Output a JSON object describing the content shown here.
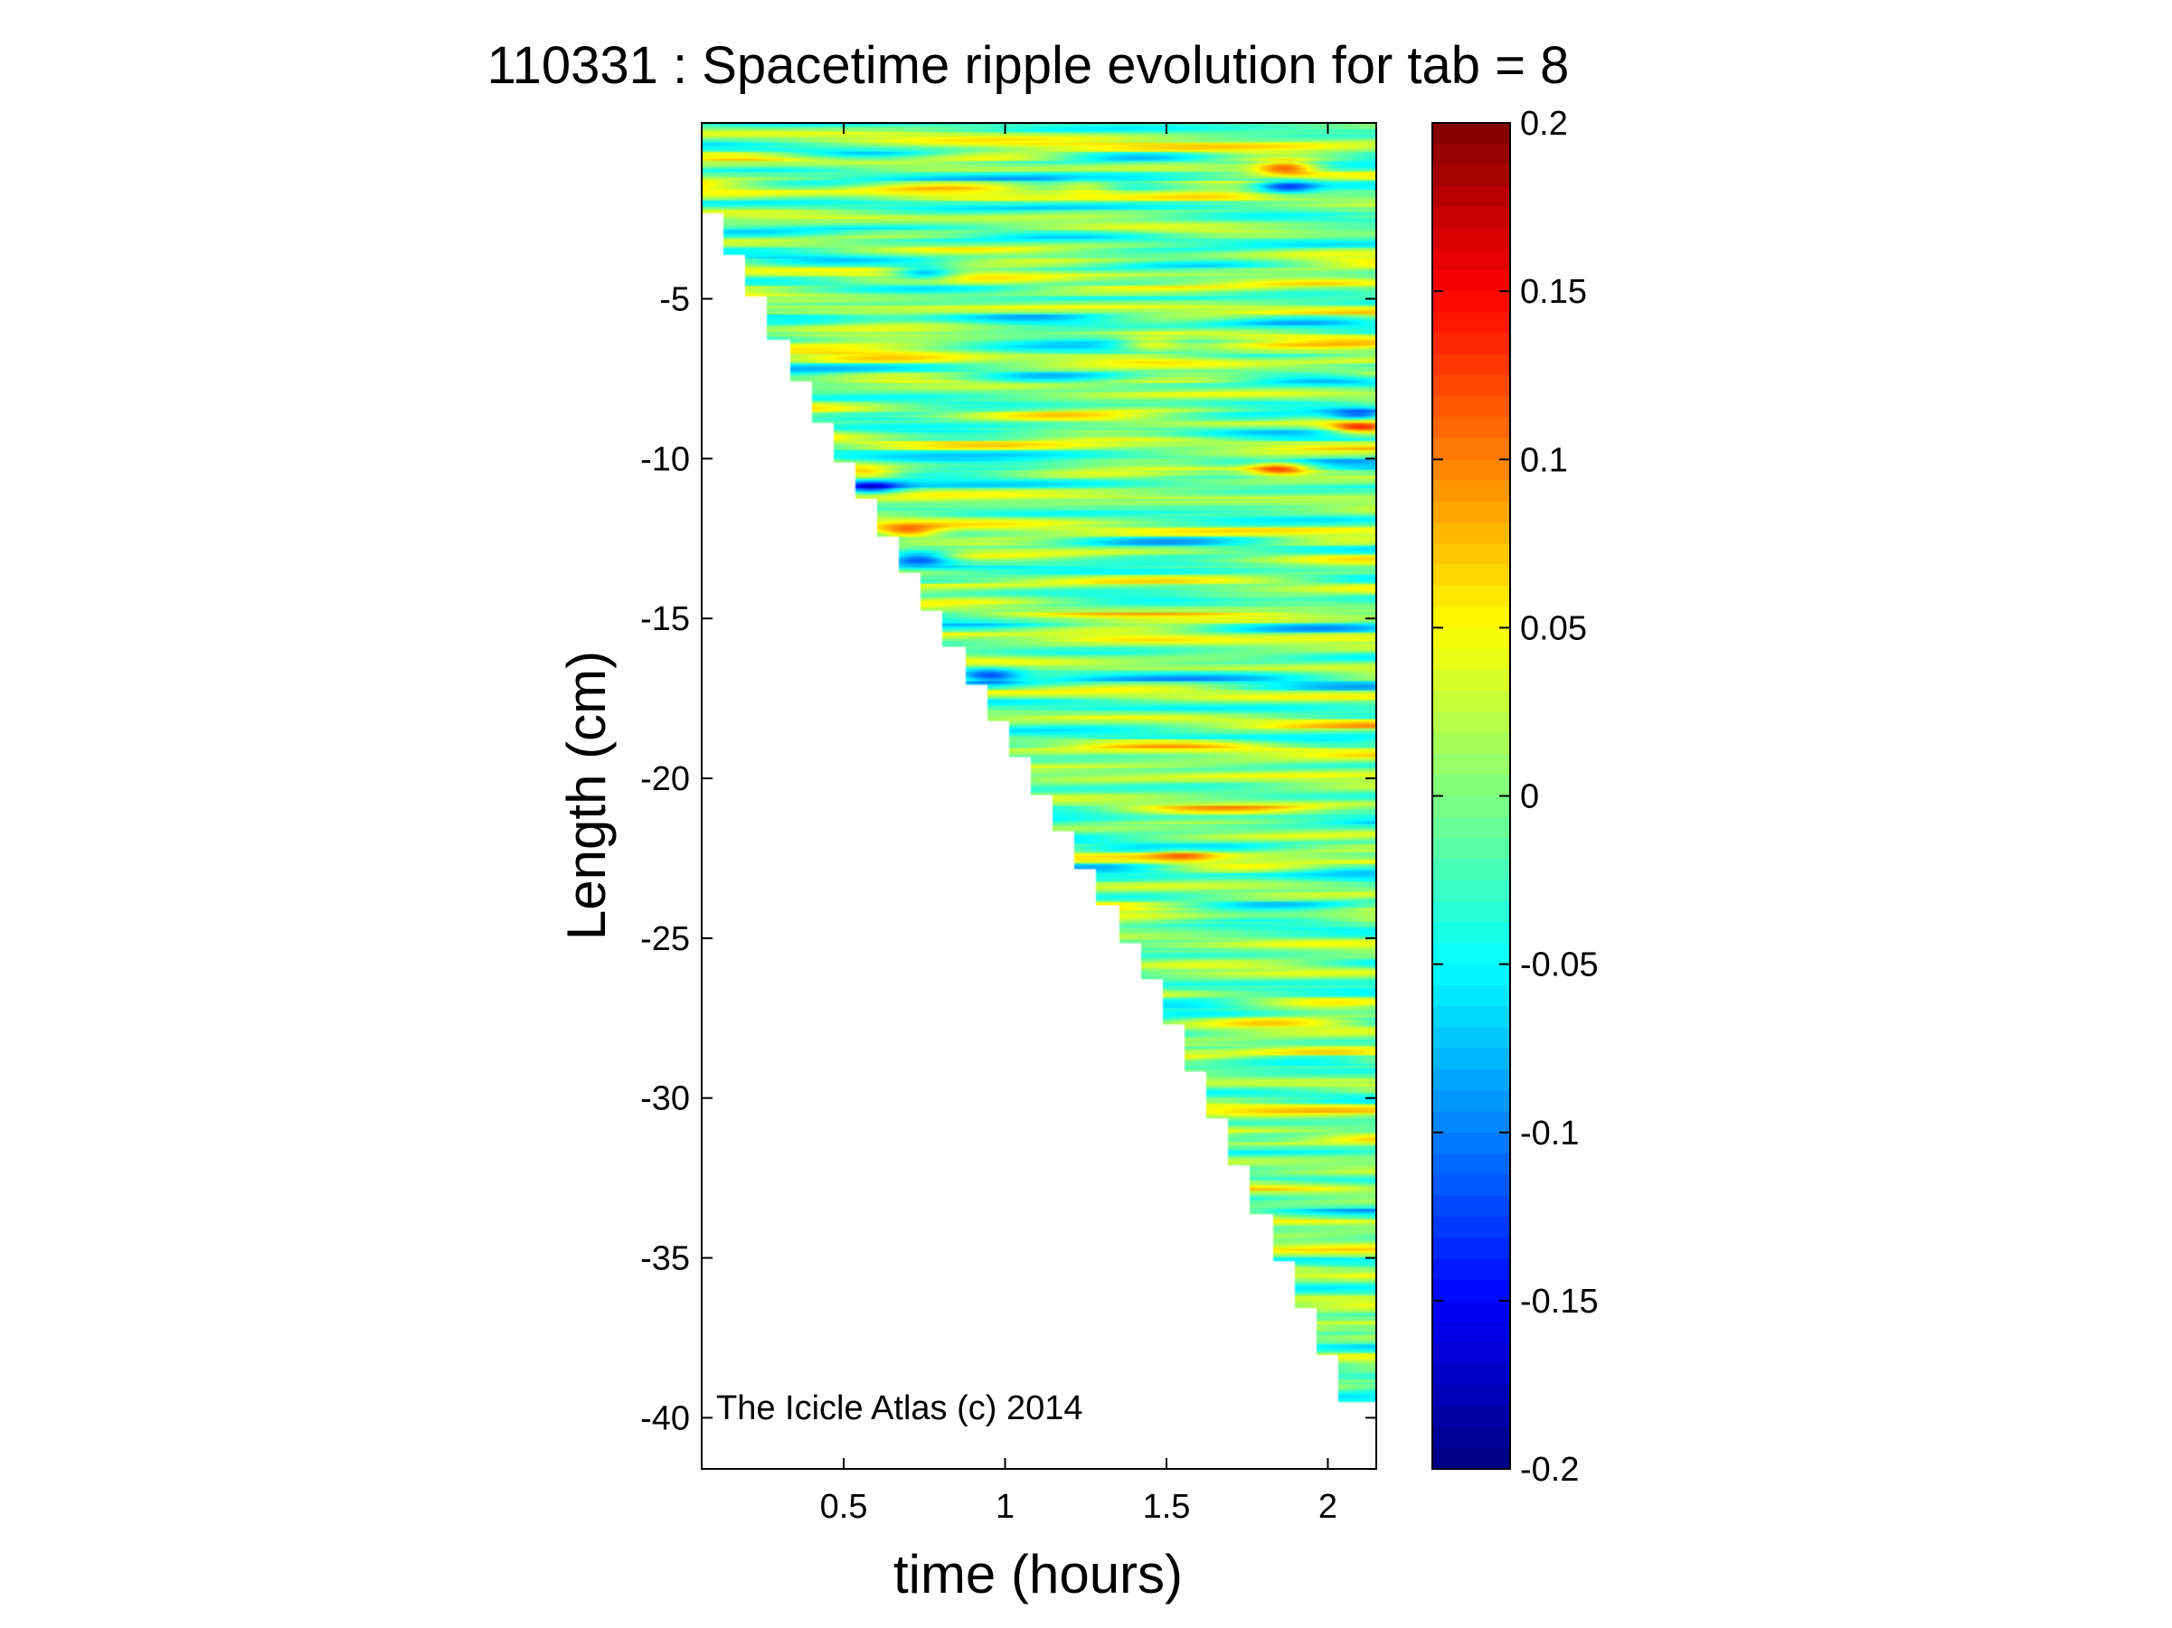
{
  "chart_data": {
    "type": "heatmap",
    "title": "110331 : Spacetime ripple evolution for tab = 8",
    "xlabel": "time (hours)",
    "ylabel": "Length (cm)",
    "xlim": [
      0.06,
      2.15
    ],
    "ylim": [
      -41.6,
      0.5
    ],
    "xticks": [
      0.5,
      1,
      1.5,
      2
    ],
    "xtick_labels": [
      "0.5",
      "1",
      "1.5",
      "2"
    ],
    "yticks": [
      -5,
      -10,
      -15,
      -20,
      -25,
      -30,
      -35,
      -40
    ],
    "ytick_labels": [
      "-5",
      "-10",
      "-15",
      "-20",
      "-25",
      "-30",
      "-35",
      "-40"
    ],
    "colorbar": {
      "colormap": "jet",
      "range": [
        -0.2,
        0.2
      ],
      "ticks": [
        0.2,
        0.15,
        0.1,
        0.05,
        0,
        -0.05,
        -0.1,
        -0.15,
        -0.2
      ],
      "tick_labels": [
        "0.2",
        "0.15",
        "0.1",
        "0.05",
        "0",
        "-0.05",
        "-0.1",
        "-0.15",
        "-0.2"
      ]
    },
    "grid": false,
    "annotation": "The Icicle Atlas (c) 2014",
    "data_boundary": {
      "description": "length grows with time; no data below the icicle tip",
      "tip_length_vs_time": [
        [
          0.06,
          -1.0
        ],
        [
          0.5,
          -9.5
        ],
        [
          1.0,
          -18.0
        ],
        [
          1.5,
          -26.5
        ],
        [
          2.1,
          -39.5
        ]
      ]
    },
    "features": [
      {
        "time": 0.7,
        "length": -12.3,
        "value": 0.12
      },
      {
        "time": 0.57,
        "length": -10.5,
        "value": 0.1
      },
      {
        "time": 0.58,
        "length": -10.9,
        "value": -0.12
      },
      {
        "time": 0.74,
        "length": -13.1,
        "value": -0.1
      },
      {
        "time": 1.25,
        "length": -1.5,
        "value": 0.09
      },
      {
        "time": 1.45,
        "length": -6.4,
        "value": 0.1
      },
      {
        "time": 1.87,
        "length": -0.9,
        "value": 0.15
      },
      {
        "time": 1.87,
        "length": -1.5,
        "value": -0.1
      },
      {
        "time": 1.85,
        "length": -10.3,
        "value": 0.15
      },
      {
        "time": 2.1,
        "length": -9.0,
        "value": 0.17
      },
      {
        "time": 2.1,
        "length": -8.7,
        "value": -0.1
      },
      {
        "time": 1.55,
        "length": -22.4,
        "value": 0.08
      },
      {
        "time": 0.75,
        "length": -4.2,
        "value": -0.09
      },
      {
        "time": 0.95,
        "length": -16.8,
        "value": -0.09
      }
    ]
  }
}
